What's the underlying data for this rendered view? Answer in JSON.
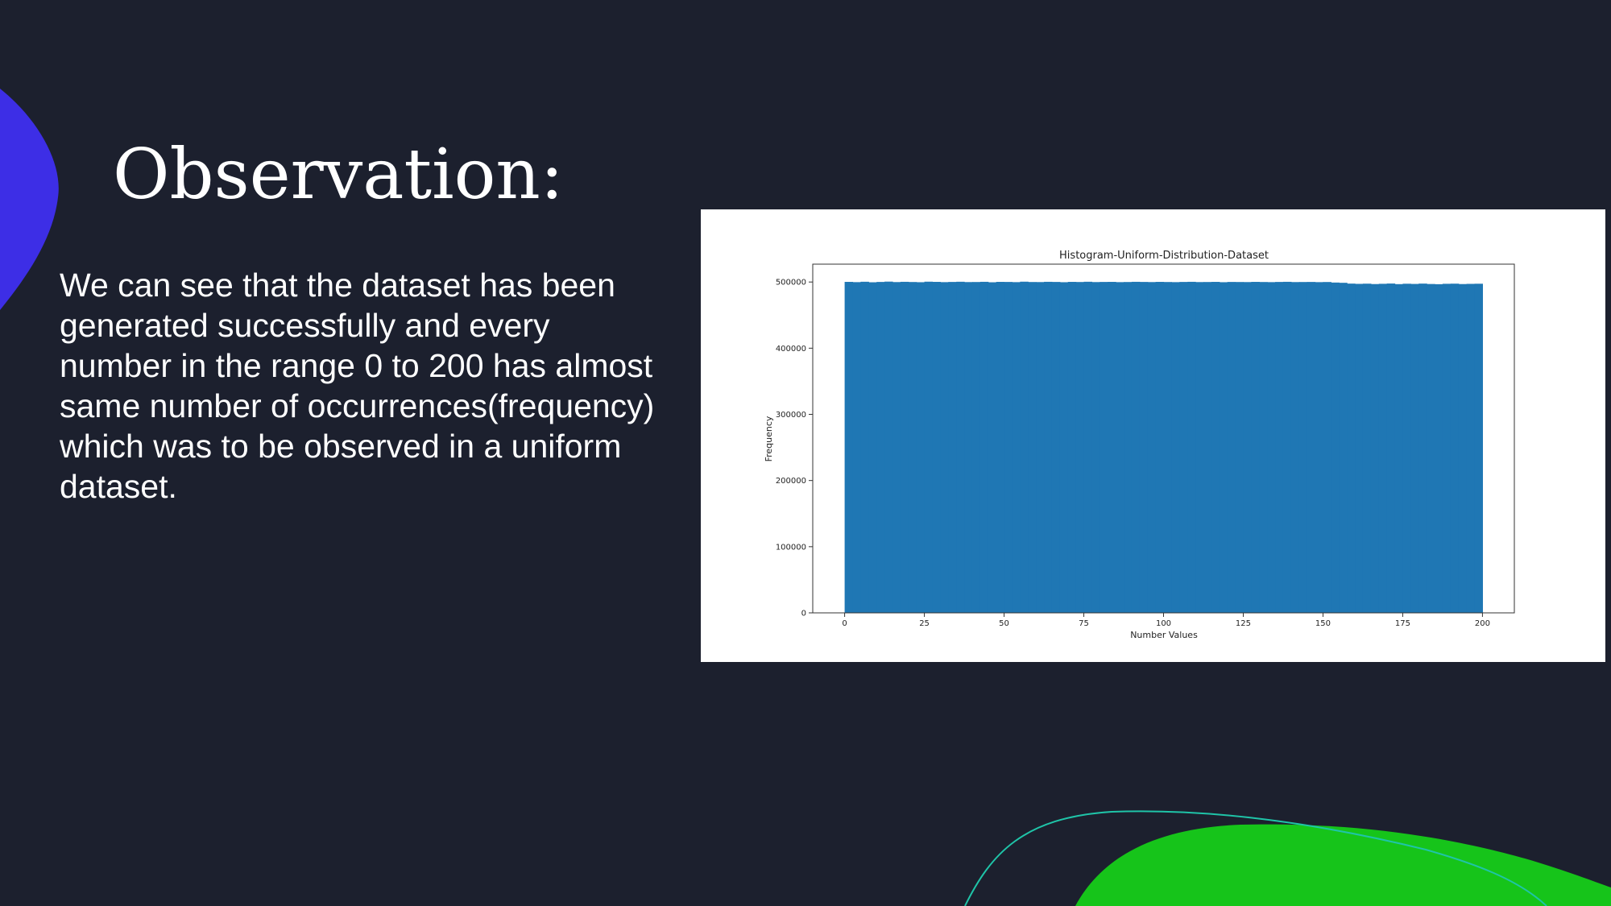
{
  "slide": {
    "title": "Observation:",
    "body_lines": [
      "We can see that the dataset has been",
      "generated successfully and every",
      "number in the range 0 to 200 has almost",
      "same number of occurrences(frequency)",
      "which was to be observed in a uniform",
      "dataset."
    ]
  },
  "colors": {
    "background": "#1c202e",
    "blob_blue": "#3d2ee6",
    "blob_green": "#16c41a",
    "accent_line": "#1fc4a8",
    "bar_fill": "#1f77b4",
    "text": "#ffffff"
  },
  "chart_data": {
    "type": "bar",
    "title": "Histogram-Uniform-Distribution-Dataset",
    "xlabel": "Number Values",
    "ylabel": "Frequency",
    "xlim": [
      -10,
      210
    ],
    "ylim": [
      0,
      527000
    ],
    "x_ticks": [
      0,
      25,
      50,
      75,
      100,
      125,
      150,
      175,
      200
    ],
    "y_ticks": [
      0,
      100000,
      200000,
      300000,
      400000,
      500000
    ],
    "bins_range": [
      0,
      200
    ],
    "bin_heights": [
      500200,
      499800,
      500400,
      499600,
      500100,
      500600,
      499900,
      500300,
      500000,
      499700,
      500500,
      500200,
      499800,
      500100,
      500400,
      499900,
      500000,
      500300,
      499600,
      500200,
      500100,
      499800,
      500500,
      500000,
      499900,
      500300,
      500100,
      499700,
      500200,
      500000,
      500400,
      499900,
      500100,
      500200,
      499800,
      500000,
      500300,
      500100,
      499900,
      500200,
      500000,
      499800,
      500100,
      500300,
      499900,
      500000,
      500200,
      499700,
      500100,
      500000,
      499900,
      500200,
      500000,
      499800,
      500100,
      500300,
      499900,
      500000,
      500100,
      499800,
      500000,
      499200,
      498800,
      497600,
      497200,
      497500,
      496900,
      497300,
      497700,
      496800,
      497400,
      497100,
      497600,
      497000,
      496700,
      497300,
      497500,
      496900,
      497200,
      497400
    ]
  }
}
